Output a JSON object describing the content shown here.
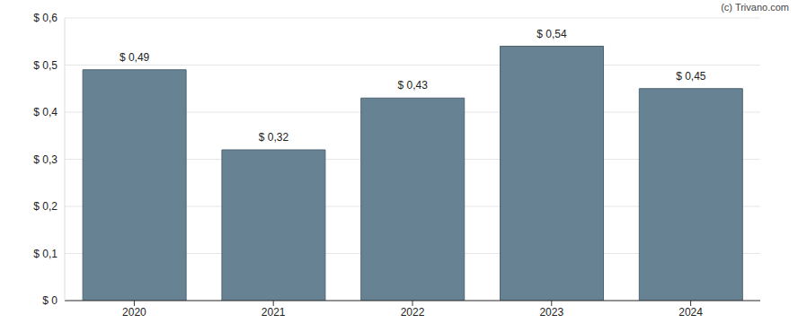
{
  "chart_data": {
    "type": "bar",
    "categories": [
      "2020",
      "2021",
      "2022",
      "2023",
      "2024"
    ],
    "values": [
      0.49,
      0.32,
      0.43,
      0.54,
      0.45
    ],
    "value_labels": [
      "$ 0,49",
      "$ 0,32",
      "$ 0,43",
      "$ 0,54",
      "$ 0,45"
    ],
    "data_labels": true,
    "color": "#668293",
    "ylim": [
      0,
      0.6
    ],
    "yticks": [
      {
        "value": 0,
        "label": "$ 0"
      },
      {
        "value": 0.1,
        "label": "$ 0,1"
      },
      {
        "value": 0.2,
        "label": "$ 0,2"
      },
      {
        "value": 0.3,
        "label": "$ 0,3"
      },
      {
        "value": 0.4,
        "label": "$ 0,4"
      },
      {
        "value": 0.5,
        "label": "$ 0,5"
      },
      {
        "value": 0.6,
        "label": "$ 0,6"
      }
    ],
    "grid": true,
    "annotations": [
      "(c) Trivano.com"
    ]
  }
}
